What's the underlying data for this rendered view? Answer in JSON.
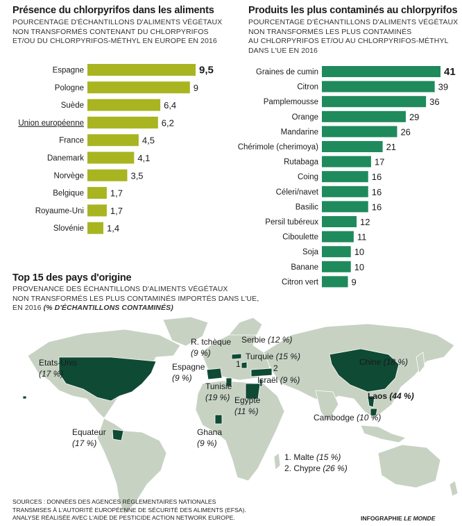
{
  "left": {
    "title": "Présence du chlorpyrifos dans les aliments",
    "subtitle": [
      "POURCENTAGE D'ÉCHANTILLONS D'ALIMENTS VÉGÉTAUX",
      "NON TRANSFORMÉS CONTENANT DU CHLORPYRIFOS",
      "ET/OU DU CHLORPYRIFOS-MÉTHYL EN EUROPE EN 2016"
    ]
  },
  "right": {
    "title": "Produits les plus contaminés au chlorpyrifos",
    "subtitle": [
      "POURCENTAGE D'ÉCHANTILLONS D'ALIMENTS VÉGÉTAUX",
      "NON TRANSFORMÉS LES PLUS CONTAMINÉS",
      "AU CHLORPYRIFOS ET/OU AU CHLORPYRIFOS-MÉTHYL",
      "DANS L'UE EN 2016"
    ]
  },
  "map": {
    "title": "Top 15 des pays d'origine",
    "subtitle": [
      "PROVENANCE DES ÉCHANTILLONS D'ALIMENTS VÉGÉTAUX",
      "NON TRANSFORMÉS LES PLUS CONTAMINÉS IMPORTÉS DANS L'UE,"
    ],
    "subtitle_last": "EN 2016",
    "subtitle_emph": "(% D'ÉCHANTILLONS CONTAMINÉS)",
    "labels": [
      {
        "id": "etats-unis",
        "name": "Etats-Unis",
        "value": "(17 %)"
      },
      {
        "id": "equateur",
        "name": "Equateur",
        "value": "(17 %)"
      },
      {
        "id": "espagne",
        "name": "Espagne",
        "value": "(9 %)"
      },
      {
        "id": "rtcheque",
        "name": "R. tchèque",
        "value": "(9 %)"
      },
      {
        "id": "serbie",
        "name": "Serbie",
        "value": "(12 %)"
      },
      {
        "id": "turquie",
        "name": "Turquie",
        "value": "(15 %)"
      },
      {
        "id": "israel",
        "name": "Israël",
        "value": "(9 %)"
      },
      {
        "id": "tunisie",
        "name": "Tunisie",
        "value": "(19 %)"
      },
      {
        "id": "egypte",
        "name": "Egypte",
        "value": "(11 %)"
      },
      {
        "id": "ghana",
        "name": "Ghana",
        "value": "(9 %)"
      },
      {
        "id": "chine",
        "name": "Chine",
        "value": "(18 %)"
      },
      {
        "id": "laos",
        "name": "Laos",
        "value": "(44 %)"
      },
      {
        "id": "cambodge",
        "name": "Cambodge",
        "value": "(10 %)"
      }
    ],
    "markers": [
      "1",
      "2"
    ],
    "notes": [
      {
        "prefix": "1. Malte",
        "value": "(15 %)"
      },
      {
        "prefix": "2. Chypre",
        "value": "(26 %)"
      }
    ],
    "colors": {
      "land": "#c7d2c3",
      "highlight": "#0f4a35",
      "water": "#ffffff"
    }
  },
  "sources": [
    "SOURCES : DONNÉES DES AGENCES RÉGLEMENTAIRES NATIONALES",
    "TRANSMISES À L'AUTORITÉ EUROPÉENNE DE SÉCURITÉ DES ALIMENTS (EFSA).",
    "ANALYSE RÉALISÉE AVEC L'AIDE DE PESTICIDE ACTION NETWORK EUROPE."
  ],
  "credit": {
    "prefix": "INFOGRAPHIE",
    "brand": "LE MONDE"
  },
  "chart_data": [
    {
      "type": "bar",
      "orientation": "horizontal",
      "title": "Présence du chlorpyrifos dans les aliments",
      "categories": [
        "Espagne",
        "Pologne",
        "Suède",
        "Union européenne",
        "France",
        "Danemark",
        "Norvège",
        "Belgique",
        "Royaume-Uni",
        "Slovénie"
      ],
      "values": [
        9.5,
        9,
        6.4,
        6.2,
        4.5,
        4.1,
        3.5,
        1.7,
        1.7,
        1.4
      ],
      "value_labels": [
        "9,5",
        "9",
        "6,4",
        "6,2",
        "4,5",
        "4,1",
        "3,5",
        "1,7",
        "1,7",
        "1,4"
      ],
      "color": "#a8b520",
      "highlight_bold_index": 0,
      "underline_index": 3,
      "xlim": [
        0,
        9.5
      ]
    },
    {
      "type": "bar",
      "orientation": "horizontal",
      "title": "Produits les plus contaminés au chlorpyrifos",
      "categories": [
        "Graines de cumin",
        "Citron",
        "Pamplemousse",
        "Orange",
        "Mandarine",
        "Chérimole (cherimoya)",
        "Rutabaga",
        "Coing",
        "Céleri/navet",
        "Basilic",
        "Persil tubéreux",
        "Ciboulette",
        "Soja",
        "Banane",
        "Citron vert"
      ],
      "values": [
        41,
        39,
        36,
        29,
        26,
        21,
        17,
        16,
        16,
        16,
        12,
        11,
        10,
        10,
        9
      ],
      "value_labels": [
        "41",
        "39",
        "36",
        "29",
        "26",
        "21",
        "17",
        "16",
        "16",
        "16",
        "12",
        "11",
        "10",
        "10",
        "9"
      ],
      "color": "#1f8a5c",
      "highlight_bold_index": 0,
      "xlim": [
        0,
        41
      ]
    }
  ]
}
